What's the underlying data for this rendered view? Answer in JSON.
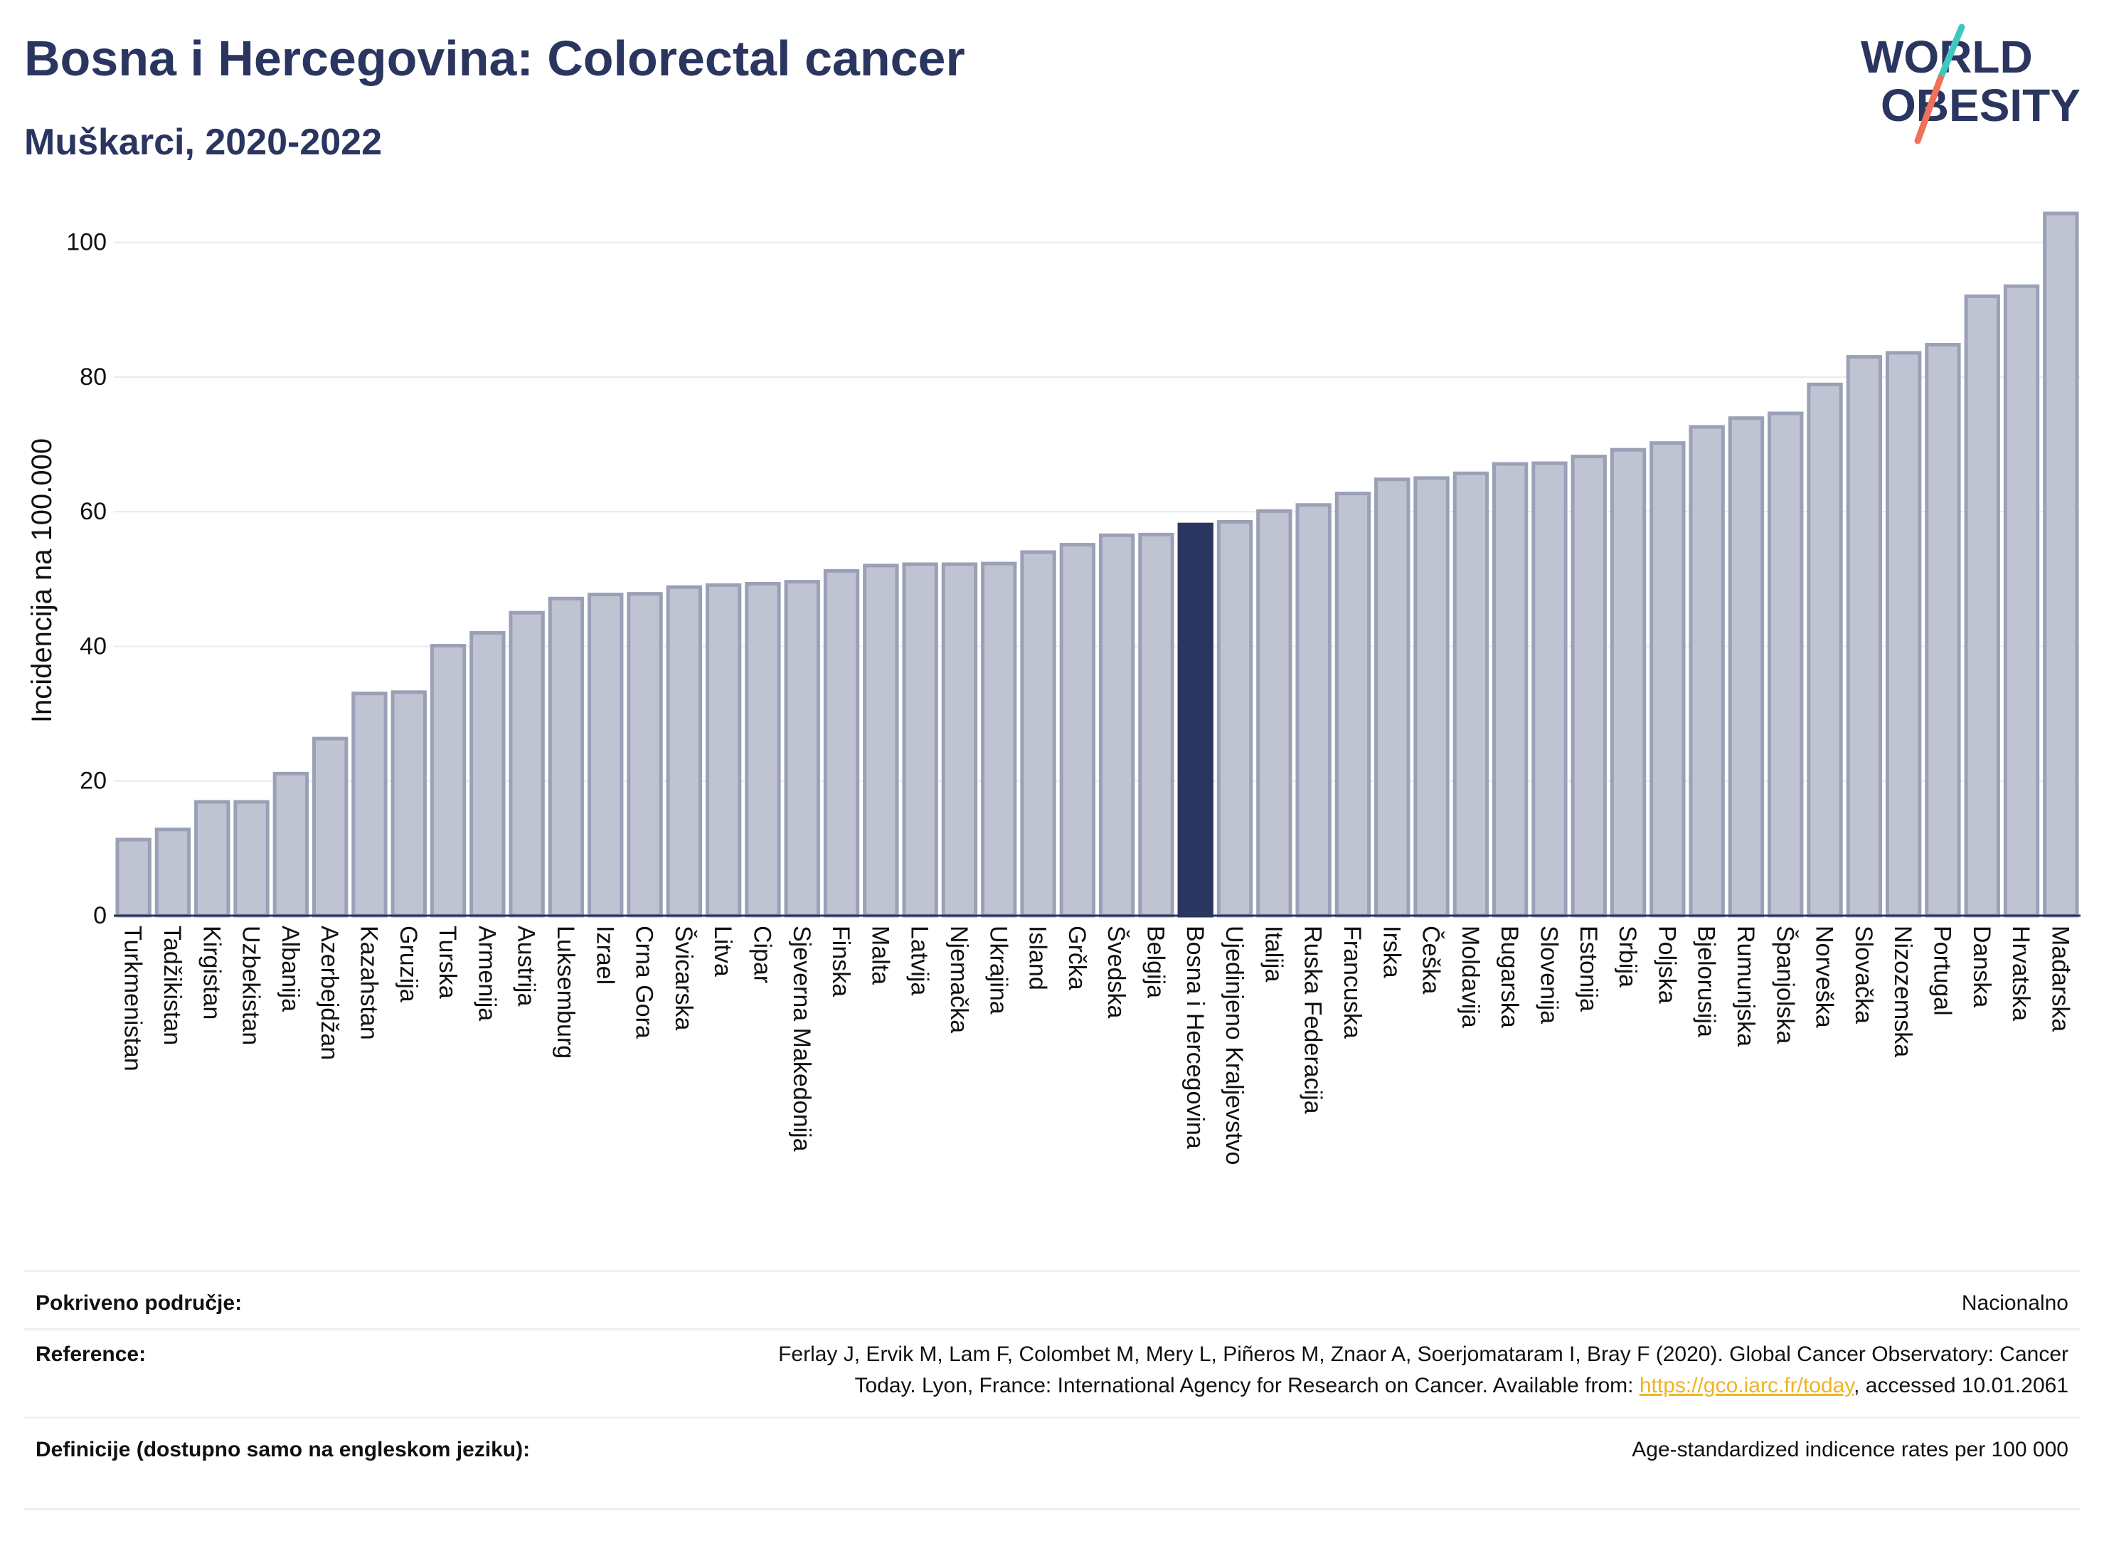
{
  "header": {
    "title": "Bosna i Hercegovina: Colorectal cancer",
    "subtitle": "Muškarci, 2020-2022",
    "logo_line1": "WORLD",
    "logo_line2": "OBESITY"
  },
  "colors": {
    "bar": "#c0c4d2",
    "bar_border": "#9aa0b6",
    "highlight": "#2a3560",
    "text": "#2a3560",
    "logo_teal": "#3ec8c0",
    "logo_coral": "#f0705a"
  },
  "chart_data": {
    "type": "bar",
    "ylabel": "Incidencija na 100.000",
    "ylim": [
      0,
      108
    ],
    "yticks": [
      0,
      20,
      40,
      60,
      80,
      100
    ],
    "grid": true,
    "highlight": "Bosna i Hercegovina",
    "categories": [
      "Turkmenistan",
      "Tadžikistan",
      "Kirgistan",
      "Uzbekistan",
      "Albanija",
      "Azerbejdžan",
      "Kazahstan",
      "Gruzija",
      "Turska",
      "Armenija",
      "Austrija",
      "Luksemburg",
      "Izrael",
      "Crna Gora",
      "Švicarska",
      "Litva",
      "Cipar",
      "Sjeverna Makedonija",
      "Finska",
      "Malta",
      "Latvija",
      "Njemačka",
      "Ukrajina",
      "Island",
      "Grčka",
      "Švedska",
      "Belgija",
      "Bosna i Hercegovina",
      "Ujedinjeno Kraljevstvo",
      "Italija",
      "Ruska Federacija",
      "Francuska",
      "Irska",
      "Češka",
      "Moldavija",
      "Bugarska",
      "Slovenija",
      "Estonija",
      "Srbija",
      "Poljska",
      "Bjelorusija",
      "Rumunjska",
      "Španjolska",
      "Norveška",
      "Slovačka",
      "Nizozemska",
      "Portugal",
      "Danska",
      "Hrvatska",
      "Mađarska"
    ],
    "values": [
      11.3,
      12.8,
      16.9,
      16.9,
      21.1,
      26.3,
      33.0,
      33.2,
      40.1,
      42.0,
      45.0,
      47.1,
      47.7,
      47.8,
      48.8,
      49.1,
      49.3,
      49.6,
      51.2,
      52.0,
      52.2,
      52.2,
      52.3,
      54.0,
      55.1,
      56.5,
      56.6,
      58.1,
      58.5,
      60.1,
      61.0,
      62.7,
      64.8,
      65.0,
      65.7,
      67.1,
      67.2,
      68.2,
      69.2,
      70.2,
      72.6,
      73.9,
      74.6,
      78.9,
      83.0,
      83.6,
      84.8,
      92.0,
      93.5,
      104.3
    ]
  },
  "info": {
    "coverage_label": "Pokriveno područje:",
    "coverage_value": "Nacionalno",
    "reference_label": "Reference:",
    "reference_line1": "Ferlay J, Ervik M, Lam F, Colombet M, Mery L, Piñeros M, Znaor A, Soerjomataram I, Bray F (2020). Global Cancer Observatory: Cancer",
    "reference_line2a": "Today. Lyon, France: International Agency for Research on Cancer. Available from: ",
    "reference_link": "https://gco.iarc.fr/today",
    "reference_line2b": ", accessed 10.01.2061",
    "definitions_label": "Definicije (dostupno samo na engleskom jeziku):",
    "definitions_value": "Age-standardized indicence rates per 100 000"
  }
}
